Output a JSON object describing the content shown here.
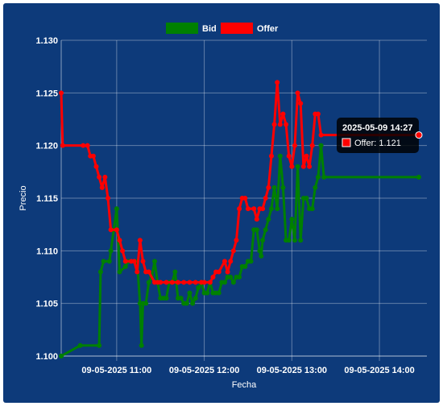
{
  "chart_data": {
    "type": "line",
    "xlabel": "Fecha",
    "ylabel": "Precio",
    "ylim": [
      1.1,
      1.13
    ],
    "y_ticks": [
      "1.100",
      "1.105",
      "1.110",
      "1.115",
      "1.120",
      "1.125",
      "1.130"
    ],
    "x_ticks": [
      "09-05-2025 11:00",
      "09-05-2025 12:00",
      "09-05-2025 13:00",
      "09-05-2025 14:00"
    ],
    "x_range": [
      "2025-05-09 10:22",
      "2025-05-09 14:27"
    ],
    "grid": true,
    "legend_position": "top",
    "series": [
      {
        "name": "Bid",
        "color": "#008000",
        "points": [
          [
            "10:22",
            1.1
          ],
          [
            "10:35",
            1.101
          ],
          [
            "10:48",
            1.101
          ],
          [
            "10:49",
            1.108
          ],
          [
            "10:51",
            1.109
          ],
          [
            "10:55",
            1.109
          ],
          [
            "10:56",
            1.11
          ],
          [
            "10:58",
            1.112
          ],
          [
            "11:00",
            1.114
          ],
          [
            "11:02",
            1.108
          ],
          [
            "11:06",
            1.1085
          ],
          [
            "11:08",
            1.109
          ],
          [
            "11:14",
            1.109
          ],
          [
            "11:16",
            1.105
          ],
          [
            "11:17",
            1.101
          ],
          [
            "11:18",
            1.105
          ],
          [
            "11:20",
            1.105
          ],
          [
            "11:22",
            1.107
          ],
          [
            "11:24",
            1.1075
          ],
          [
            "11:26",
            1.109
          ],
          [
            "11:28",
            1.107
          ],
          [
            "11:30",
            1.1055
          ],
          [
            "11:32",
            1.1055
          ],
          [
            "11:34",
            1.1055
          ],
          [
            "11:36",
            1.107
          ],
          [
            "11:38",
            1.107
          ],
          [
            "11:40",
            1.108
          ],
          [
            "11:42",
            1.1055
          ],
          [
            "11:44",
            1.1055
          ],
          [
            "11:46",
            1.105
          ],
          [
            "11:48",
            1.105
          ],
          [
            "11:50",
            1.106
          ],
          [
            "11:52",
            1.105
          ],
          [
            "11:54",
            1.1055
          ],
          [
            "11:56",
            1.1065
          ],
          [
            "11:58",
            1.107
          ],
          [
            "12:00",
            1.106
          ],
          [
            "12:02",
            1.106
          ],
          [
            "12:04",
            1.107
          ],
          [
            "12:06",
            1.106
          ],
          [
            "12:08",
            1.106
          ],
          [
            "12:10",
            1.106
          ],
          [
            "12:12",
            1.107
          ],
          [
            "12:14",
            1.107
          ],
          [
            "12:16",
            1.1075
          ],
          [
            "12:18",
            1.1075
          ],
          [
            "12:20",
            1.107
          ],
          [
            "12:22",
            1.1075
          ],
          [
            "12:24",
            1.1075
          ],
          [
            "12:26",
            1.1085
          ],
          [
            "12:28",
            1.1085
          ],
          [
            "12:30",
            1.109
          ],
          [
            "12:32",
            1.109
          ],
          [
            "12:34",
            1.112
          ],
          [
            "12:36",
            1.112
          ],
          [
            "12:38",
            1.11
          ],
          [
            "12:39",
            1.1095
          ],
          [
            "12:40",
            1.111
          ],
          [
            "12:42",
            1.112
          ],
          [
            "12:44",
            1.113
          ],
          [
            "12:46",
            1.114
          ],
          [
            "12:48",
            1.116
          ],
          [
            "12:50",
            1.114
          ],
          [
            "12:52",
            1.119
          ],
          [
            "12:54",
            1.116
          ],
          [
            "12:56",
            1.111
          ],
          [
            "12:58",
            1.111
          ],
          [
            "13:00",
            1.113
          ],
          [
            "13:02",
            1.111
          ],
          [
            "13:04",
            1.118
          ],
          [
            "13:06",
            1.111
          ],
          [
            "13:08",
            1.115
          ],
          [
            "13:10",
            1.115
          ],
          [
            "13:12",
            1.114
          ],
          [
            "13:14",
            1.114
          ],
          [
            "13:16",
            1.116
          ],
          [
            "13:18",
            1.117
          ],
          [
            "13:20",
            1.12
          ],
          [
            "13:22",
            1.117
          ],
          [
            "14:27",
            1.117
          ]
        ]
      },
      {
        "name": "Offer",
        "color": "#ff0000",
        "points": [
          [
            "10:22",
            1.125
          ],
          [
            "10:23",
            1.12
          ],
          [
            "10:37",
            1.12
          ],
          [
            "10:40",
            1.12
          ],
          [
            "10:42",
            1.119
          ],
          [
            "10:44",
            1.119
          ],
          [
            "10:46",
            1.118
          ],
          [
            "10:48",
            1.117
          ],
          [
            "10:50",
            1.116
          ],
          [
            "10:52",
            1.117
          ],
          [
            "10:54",
            1.115
          ],
          [
            "10:56",
            1.112
          ],
          [
            "11:00",
            1.112
          ],
          [
            "11:02",
            1.111
          ],
          [
            "11:04",
            1.11
          ],
          [
            "11:06",
            1.109
          ],
          [
            "11:10",
            1.109
          ],
          [
            "11:12",
            1.109
          ],
          [
            "11:14",
            1.108
          ],
          [
            "11:16",
            1.111
          ],
          [
            "11:18",
            1.109
          ],
          [
            "11:20",
            1.108
          ],
          [
            "11:22",
            1.108
          ],
          [
            "11:26",
            1.107
          ],
          [
            "11:28",
            1.107
          ],
          [
            "11:30",
            1.107
          ],
          [
            "11:34",
            1.107
          ],
          [
            "11:38",
            1.107
          ],
          [
            "11:42",
            1.107
          ],
          [
            "11:46",
            1.107
          ],
          [
            "11:50",
            1.107
          ],
          [
            "11:54",
            1.107
          ],
          [
            "11:58",
            1.107
          ],
          [
            "12:00",
            1.107
          ],
          [
            "12:04",
            1.107
          ],
          [
            "12:06",
            1.1075
          ],
          [
            "12:08",
            1.108
          ],
          [
            "12:10",
            1.108
          ],
          [
            "12:14",
            1.109
          ],
          [
            "12:16",
            1.108
          ],
          [
            "12:18",
            1.109
          ],
          [
            "12:20",
            1.11
          ],
          [
            "12:22",
            1.111
          ],
          [
            "12:24",
            1.114
          ],
          [
            "12:26",
            1.115
          ],
          [
            "12:28",
            1.115
          ],
          [
            "12:30",
            1.114
          ],
          [
            "12:34",
            1.114
          ],
          [
            "12:36",
            1.113
          ],
          [
            "12:38",
            1.114
          ],
          [
            "12:40",
            1.114
          ],
          [
            "12:42",
            1.115
          ],
          [
            "12:44",
            1.116
          ],
          [
            "12:46",
            1.119
          ],
          [
            "12:48",
            1.122
          ],
          [
            "12:50",
            1.126
          ],
          [
            "12:52",
            1.122
          ],
          [
            "12:54",
            1.123
          ],
          [
            "12:56",
            1.122
          ],
          [
            "12:58",
            1.119
          ],
          [
            "13:00",
            1.118
          ],
          [
            "13:02",
            1.12
          ],
          [
            "13:04",
            1.125
          ],
          [
            "13:06",
            1.124
          ],
          [
            "13:08",
            1.118
          ],
          [
            "13:10",
            1.119
          ],
          [
            "13:12",
            1.118
          ],
          [
            "13:14",
            1.12
          ],
          [
            "13:16",
            1.123
          ],
          [
            "13:18",
            1.123
          ],
          [
            "13:20",
            1.121
          ],
          [
            "14:27",
            1.121
          ]
        ]
      }
    ],
    "tooltip": {
      "title": "2025-05-09 14:27",
      "label": "Offer: 1.121",
      "series": "Offer"
    }
  }
}
